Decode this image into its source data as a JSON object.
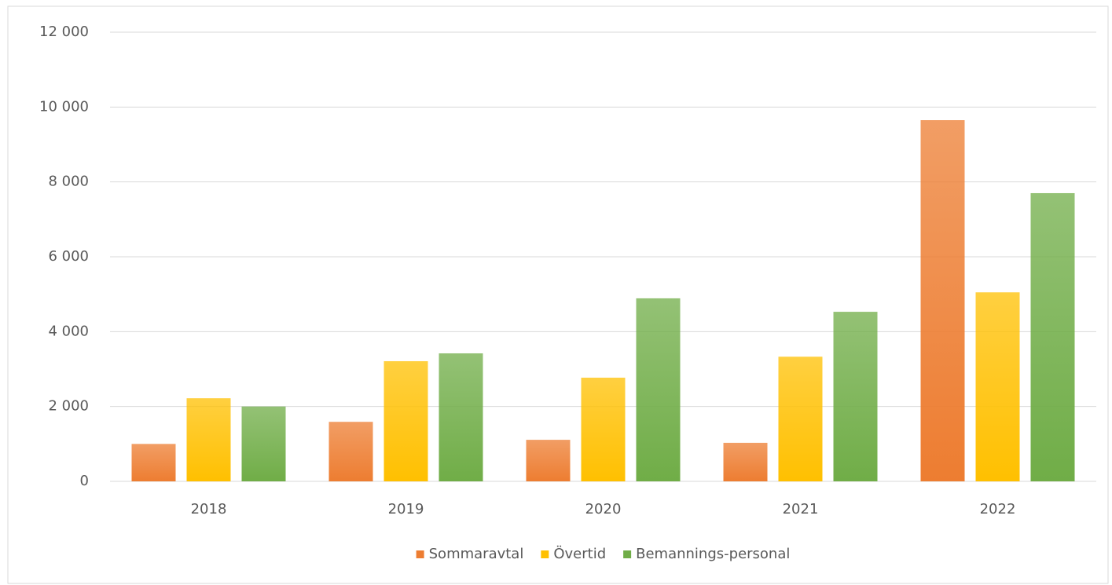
{
  "chart_data": {
    "type": "bar",
    "categories": [
      "2018",
      "2019",
      "2020",
      "2021",
      "2022"
    ],
    "series": [
      {
        "name": "Sommaravtal",
        "color": "#ed7d31",
        "values": [
          1000,
          1590,
          1110,
          1030,
          9650
        ]
      },
      {
        "name": "Övertid",
        "color": "#ffc000",
        "values": [
          2220,
          3210,
          2770,
          3330,
          5050
        ]
      },
      {
        "name": "Bemannings-personal",
        "color": "#70ad47",
        "values": [
          2000,
          3420,
          4890,
          4530,
          7700
        ]
      }
    ],
    "ylim": [
      0,
      12000
    ],
    "yticks": [
      0,
      {
        "value": 2000,
        "label": "2 000"
      },
      {
        "value": 4000,
        "label": "4 000"
      },
      {
        "value": 6000,
        "label": "6 000"
      },
      {
        "value": 8000,
        "label": "8 000"
      },
      {
        "value": 10000,
        "label": "10 000"
      },
      {
        "value": 12000,
        "label": "12 000"
      }
    ],
    "grid": true,
    "legend": "bottom"
  }
}
